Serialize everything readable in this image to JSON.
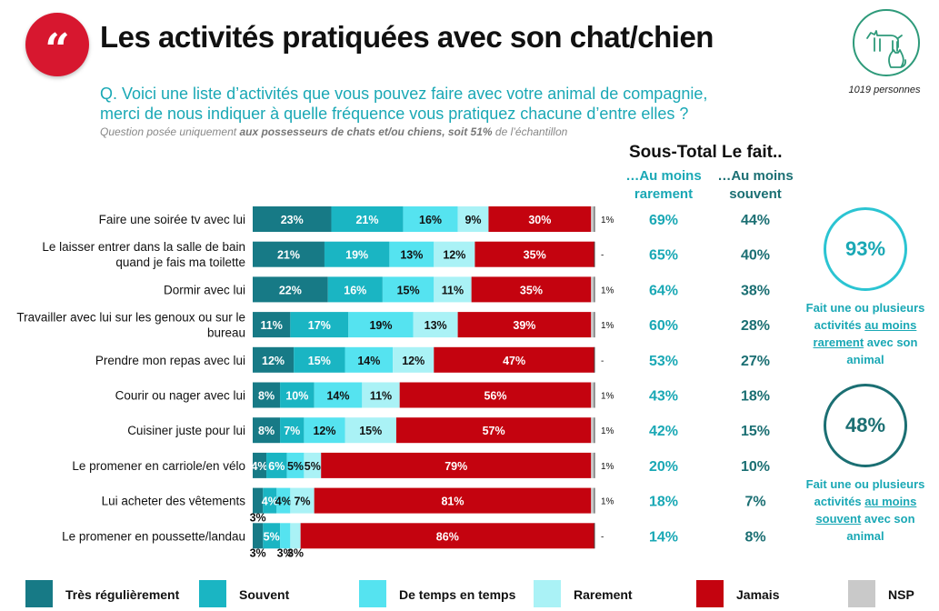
{
  "header": {
    "title": "Les activités pratiquées avec son chat/chien",
    "sample": "1019 personnes",
    "question_line1": "Q. Voici une liste d’activités que vous pouvez faire avec votre animal de compagnie,",
    "question_line2": "merci de nous indiquer à quelle fréquence vous pratiquez chacune d’entre elles ?",
    "subq_before": "Question posée uniquement ",
    "subq_bold": "aux possesseurs de chats et/ou chiens, soit 51%",
    "subq_after": " de l’échantillon"
  },
  "subtotal": {
    "title": "Sous-Total Le fait..",
    "col1_line1": "…Au moins",
    "col1_line2": "rarement",
    "col2_line1": "…Au moins",
    "col2_line2": "souvent"
  },
  "summary": {
    "rarely_value": "93%",
    "rarely_text_1": "Fait une ou plusieurs",
    "rarely_text_2a": "activités ",
    "rarely_text_2b": "au moins",
    "rarely_text_3a": "rarement",
    "rarely_text_3b": " avec son",
    "rarely_text_4": "animal",
    "often_value": "48%",
    "often_text_1": "Fait une ou plusieurs",
    "often_text_2a": "activités ",
    "often_text_2b": "au moins",
    "often_text_3a": "souvent",
    "often_text_3b": " avec son",
    "often_text_4": "animal"
  },
  "colors": {
    "tres_regulierement": "#177a86",
    "souvent": "#1ab5c3",
    "de_temps_en_temps": "#55e3f0",
    "rarement": "#aaf2f6",
    "jamais": "#c4030f",
    "nsp": "#c9c9c9",
    "teal_text": "#1aa8b5",
    "dark_teal_text": "#1b6f73"
  },
  "chart_data": {
    "type": "bar",
    "orientation": "horizontal",
    "stacked": true,
    "xlim": [
      0,
      100
    ],
    "categories": [
      "Faire une soirée tv avec lui",
      "Le laisser entrer dans la salle de bain quand je fais ma toilette",
      "Dormir avec lui",
      "Travailler avec lui sur les genoux ou sur le bureau",
      "Prendre mon repas avec lui",
      "Courir ou nager avec lui",
      "Cuisiner juste pour lui",
      "Le promener en carriole/en vélo",
      "Lui acheter des vêtements",
      "Le promener en poussette/landau"
    ],
    "category_lines": [
      [
        "Faire une soirée tv avec lui"
      ],
      [
        "Le laisser entrer dans la salle de bain",
        "quand je fais ma toilette"
      ],
      [
        "Dormir avec lui"
      ],
      [
        "Travailler avec lui sur les genoux ou sur le",
        "bureau"
      ],
      [
        "Prendre mon repas avec lui"
      ],
      [
        "Courir ou nager avec lui"
      ],
      [
        "Cuisiner juste pour lui"
      ],
      [
        "Le promener en carriole/en vélo"
      ],
      [
        "Lui acheter des vêtements"
      ],
      [
        "Le promener en poussette/landau"
      ]
    ],
    "series": [
      {
        "name": "Très régulièrement",
        "values": [
          23,
          21,
          22,
          11,
          12,
          8,
          8,
          4,
          3,
          3
        ]
      },
      {
        "name": "Souvent",
        "values": [
          21,
          19,
          16,
          17,
          15,
          10,
          7,
          6,
          4,
          5
        ]
      },
      {
        "name": "De temps en temps",
        "values": [
          16,
          13,
          15,
          19,
          14,
          14,
          12,
          5,
          4,
          3
        ]
      },
      {
        "name": "Rarement",
        "values": [
          9,
          12,
          11,
          13,
          12,
          11,
          15,
          5,
          7,
          3
        ]
      },
      {
        "name": "Jamais",
        "values": [
          30,
          35,
          35,
          39,
          47,
          56,
          57,
          79,
          81,
          86
        ]
      },
      {
        "name": "NSP",
        "values": [
          1,
          0,
          1,
          1,
          0,
          1,
          1,
          1,
          1,
          0
        ]
      }
    ],
    "nsp_labels": [
      "1%",
      "-",
      "1%",
      "1%",
      "-",
      "1%",
      "1%",
      "1%",
      "1%",
      "-"
    ],
    "au_moins_rarement": [
      "69%",
      "65%",
      "64%",
      "60%",
      "53%",
      "43%",
      "42%",
      "20%",
      "18%",
      "14%"
    ],
    "au_moins_souvent": [
      "44%",
      "40%",
      "38%",
      "28%",
      "27%",
      "18%",
      "15%",
      "10%",
      "7%",
      "8%"
    ],
    "legend": [
      "Très régulièrement",
      "Souvent",
      "De temps en temps",
      "Rarement",
      "Jamais",
      "NSP"
    ],
    "legend_position": "bottom"
  }
}
